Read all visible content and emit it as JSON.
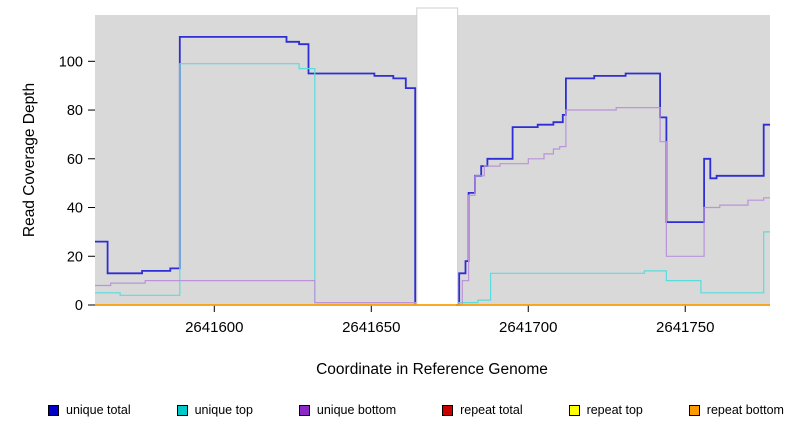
{
  "chart_data": {
    "type": "line",
    "step": "after",
    "title": "",
    "xlabel": "Coordinate in Reference Genome",
    "ylabel": "Read Coverage Depth",
    "xlim": [
      2641562,
      2641777
    ],
    "ylim": [
      0,
      119
    ],
    "x_ticks": [
      2641600,
      2641650,
      2641700,
      2641750
    ],
    "y_ticks": [
      0,
      20,
      40,
      60,
      80,
      100
    ],
    "grid": false,
    "plot_background": "#d9d9d9",
    "legend_position": "bottom",
    "masked_region": {
      "x_start": 2641664.5,
      "x_end": 2641677.5,
      "fill": "#ffffff"
    },
    "series": [
      {
        "name": "unique total",
        "color": "#2e2ed4",
        "swatch": "#0000c8",
        "width": 1.8,
        "segments": [
          [
            [
              2641562,
              26
            ],
            [
              2641566,
              13
            ],
            [
              2641577,
              14
            ],
            [
              2641586,
              15
            ],
            [
              2641589,
              110
            ],
            [
              2641623,
              108
            ],
            [
              2641627,
              107
            ],
            [
              2641630,
              95
            ],
            [
              2641651,
              94
            ],
            [
              2641657,
              93
            ],
            [
              2641661,
              89
            ],
            [
              2641664,
              0
            ]
          ],
          [
            [
              2641677,
              0
            ],
            [
              2641678,
              13
            ],
            [
              2641680,
              18
            ],
            [
              2641681,
              46
            ],
            [
              2641683,
              53
            ],
            [
              2641685,
              57
            ],
            [
              2641687,
              60
            ],
            [
              2641695,
              73
            ],
            [
              2641703,
              74
            ],
            [
              2641708,
              75
            ],
            [
              2641711,
              78
            ],
            [
              2641712,
              93
            ],
            [
              2641721,
              94
            ],
            [
              2641731,
              95
            ],
            [
              2641742,
              77
            ],
            [
              2641744,
              34
            ],
            [
              2641756,
              60
            ],
            [
              2641758,
              52
            ],
            [
              2641760,
              53
            ],
            [
              2641775,
              74
            ],
            [
              2641777,
              74
            ]
          ]
        ]
      },
      {
        "name": "unique top",
        "color": "#5adcdc",
        "swatch": "#00c8c8",
        "width": 1.2,
        "segments": [
          [
            [
              2641562,
              5
            ],
            [
              2641570,
              4
            ],
            [
              2641589,
              99
            ],
            [
              2641627,
              97
            ],
            [
              2641632,
              1
            ],
            [
              2641664,
              0
            ]
          ],
          [
            [
              2641677,
              0
            ],
            [
              2641678,
              1
            ],
            [
              2641684,
              2
            ],
            [
              2641688,
              13
            ],
            [
              2641737,
              14
            ],
            [
              2641744,
              10
            ],
            [
              2641755,
              5
            ],
            [
              2641775,
              30
            ],
            [
              2641777,
              30
            ]
          ]
        ]
      },
      {
        "name": "unique bottom",
        "color": "#bb93d9",
        "swatch": "#8c28c8",
        "width": 1.2,
        "segments": [
          [
            [
              2641562,
              8
            ],
            [
              2641567,
              9
            ],
            [
              2641578,
              10
            ],
            [
              2641632,
              1
            ],
            [
              2641664,
              0
            ]
          ],
          [
            [
              2641677,
              0
            ],
            [
              2641679,
              10
            ],
            [
              2641681,
              45
            ],
            [
              2641683,
              53
            ],
            [
              2641686,
              57
            ],
            [
              2641691,
              58
            ],
            [
              2641700,
              60
            ],
            [
              2641705,
              62
            ],
            [
              2641708,
              64
            ],
            [
              2641710,
              65
            ],
            [
              2641712,
              80
            ],
            [
              2641728,
              81
            ],
            [
              2641742,
              67
            ],
            [
              2641744,
              20
            ],
            [
              2641756,
              40
            ],
            [
              2641761,
              41
            ],
            [
              2641770,
              43
            ],
            [
              2641775,
              44
            ],
            [
              2641777,
              44
            ]
          ]
        ]
      },
      {
        "name": "repeat total",
        "color": "#cc0000",
        "swatch": "#c80000",
        "width": 1.2,
        "segments": [
          [
            [
              2641562,
              0
            ],
            [
              2641777,
              0
            ]
          ]
        ]
      },
      {
        "name": "repeat top",
        "color": "#ffff00",
        "swatch": "#ffff00",
        "width": 1.2,
        "segments": [
          [
            [
              2641562,
              0
            ],
            [
              2641777,
              0
            ]
          ]
        ]
      },
      {
        "name": "repeat bottom",
        "color": "#ff9d00",
        "swatch": "#ff9900",
        "width": 1.6,
        "segments": [
          [
            [
              2641562,
              0
            ],
            [
              2641777,
              0
            ]
          ]
        ]
      }
    ]
  }
}
